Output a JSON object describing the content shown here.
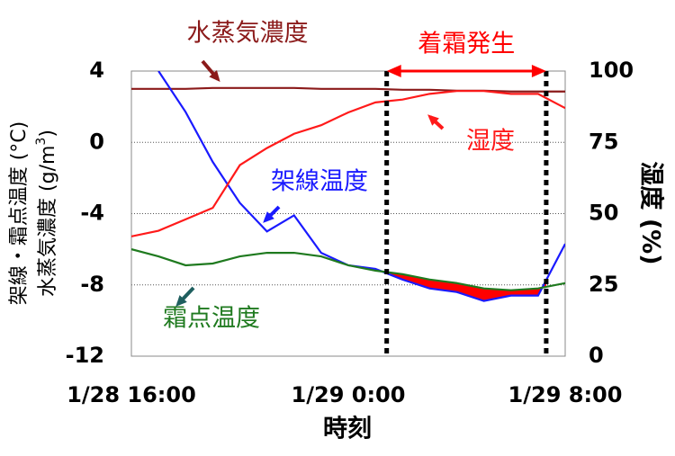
{
  "chart_data": {
    "type": "line",
    "x_label": "時刻",
    "y_label": "架線・霜点温度 (°C)",
    "y_label_2": [
      "水蒸気濃度 (g/m",
      "3",
      ")"
    ],
    "y2_label": "湿度 (%)",
    "x": [
      "1/28 16:00",
      "1/28 17:00",
      "1/28 18:00",
      "1/28 19:00",
      "1/28 20:00",
      "1/28 21:00",
      "1/28 22:00",
      "1/28 23:00",
      "1/29 0:00",
      "1/29 1:00",
      "1/29 2:00",
      "1/29 3:00",
      "1/29 4:00",
      "1/29 5:00",
      "1/29 6:00",
      "1/29 7:00",
      "1/29 8:00"
    ],
    "xlim": [
      "1/28 16:00",
      "1/29 8:00"
    ],
    "xticks": [
      "1/28 16:00",
      "1/29 0:00",
      "1/29 8:00"
    ],
    "ylim": [
      -12,
      4
    ],
    "yticks": [
      -12,
      -8,
      -4,
      0,
      4
    ],
    "y2lim": [
      0,
      100
    ],
    "y2ticks": [
      0,
      25,
      50,
      75,
      100
    ],
    "grid": true,
    "series": [
      {
        "name": "水蒸気濃度",
        "color": "#8b1a1a",
        "values": [
          3.0,
          3.0,
          3.0,
          3.05,
          3.05,
          3.05,
          3.05,
          3.0,
          3.0,
          3.0,
          2.95,
          2.95,
          2.9,
          2.9,
          2.85,
          2.85,
          2.85
        ]
      },
      {
        "name": "架線温度",
        "color": "#1a1aff",
        "values": [
          null,
          4.0,
          1.7,
          -1.1,
          -3.4,
          -5.0,
          -4.1,
          -6.2,
          -6.9,
          -7.1,
          -7.7,
          -8.2,
          -8.4,
          -8.9,
          -8.6,
          -8.6,
          -5.7
        ]
      },
      {
        "name": "霜点温度",
        "color": "#1f7a1f",
        "values": [
          -6.0,
          -6.4,
          -6.9,
          -6.8,
          -6.4,
          -6.2,
          -6.2,
          -6.4,
          -6.9,
          -7.2,
          -7.4,
          -7.7,
          -7.9,
          -8.2,
          -8.3,
          -8.2,
          -7.9
        ]
      },
      {
        "name": "湿度",
        "color": "#ff1a1a",
        "axis": "y2",
        "values": [
          42,
          44,
          48,
          52,
          67,
          73,
          78,
          81,
          85.5,
          89,
          90,
          92,
          93,
          93,
          92,
          92,
          87
        ]
      }
    ],
    "frost": {
      "label": "着霜発生",
      "color": "#ff0000",
      "x": [
        "1/29 1:25",
        "1/29 7:18"
      ]
    }
  }
}
